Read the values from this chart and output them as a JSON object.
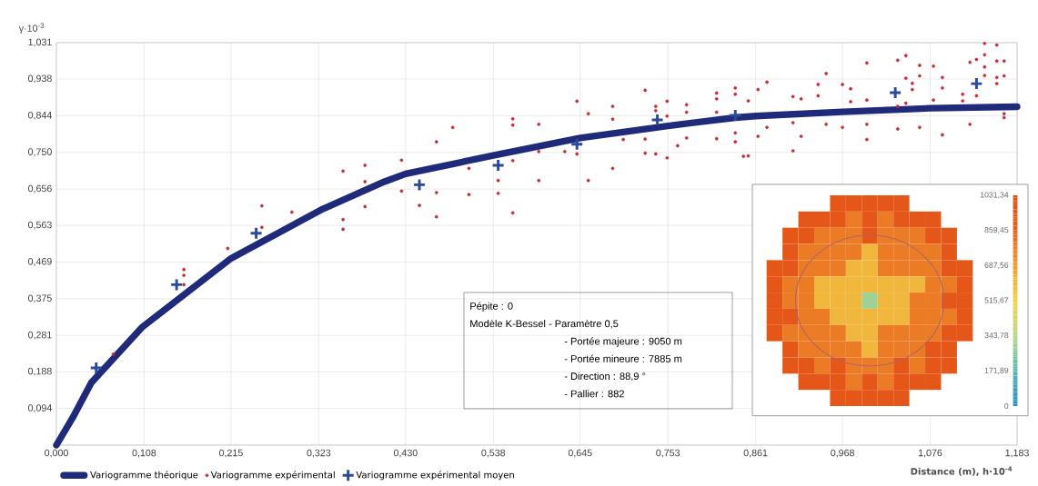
{
  "chart_data": [
    {
      "type": "line",
      "ylabel": "γ·10$^{-3}$",
      "xlabel": "Distance (m), h·10$^{-4}$",
      "annotations": [
        "Pépite : 0",
        "Modèle K-Bessel - Paramètre 0,5",
        "- Portée majeure : 9050 m",
        "- Portée mineure : 7885 m",
        "- Direction : 88,9 °",
        "- Pallier : 882"
      ],
      "xlim": [
        0,
        1.183
      ],
      "ylim": [
        0,
        1.031
      ],
      "xticks": [
        {
          "value": 0,
          "label": "0,000"
        },
        {
          "value": 0.108,
          "label": "0,108"
        },
        {
          "value": 0.215,
          "label": "0,215"
        },
        {
          "value": 0.323,
          "label": "0,323"
        },
        {
          "value": 0.43,
          "label": "0,430"
        },
        {
          "value": 0.538,
          "label": "0,538"
        },
        {
          "value": 0.645,
          "label": "0,645"
        },
        {
          "value": 0.753,
          "label": "0,753"
        },
        {
          "value": 0.861,
          "label": "0,861"
        },
        {
          "value": 0.968,
          "label": "0,968"
        },
        {
          "value": 1.076,
          "label": "1,076"
        },
        {
          "value": 1.183,
          "label": "1,183"
        }
      ],
      "yticks": [
        {
          "value": 0,
          "label": null
        },
        {
          "value": 0.094,
          "label": "0,094"
        },
        {
          "value": 0.188,
          "label": "0,188"
        },
        {
          "value": 0.281,
          "label": "0,281"
        },
        {
          "value": 0.375,
          "label": "0,375"
        },
        {
          "value": 0.469,
          "label": "0,469"
        },
        {
          "value": 0.563,
          "label": "0,563"
        },
        {
          "value": 0.656,
          "label": "0,656"
        },
        {
          "value": 0.75,
          "label": "0,750"
        },
        {
          "value": 0.844,
          "label": "0,844"
        },
        {
          "value": 0.938,
          "label": "0,938"
        },
        {
          "value": 1.031,
          "label": "1,031"
        }
      ],
      "grid": true,
      "legend": "bottom left",
      "series": [
        {
          "name": "Variogramme théorique",
          "type": "line",
          "color": "#1f2a7a",
          "marker": "none",
          "line_style": "solid",
          "x": [
            0,
            0.02,
            0.043,
            0.106,
            0.214,
            0.328,
            0.404,
            0.43,
            0.538,
            0.645,
            0.753,
            0.836,
            0.861,
            0.968,
            1.076,
            1.183
          ],
          "values": [
            0,
            0.07,
            0.16,
            0.303,
            0.477,
            0.605,
            0.675,
            0.695,
            0.742,
            0.787,
            0.818,
            0.839,
            0.843,
            0.854,
            0.863,
            0.867
          ]
        },
        {
          "name": "Variogramme expérimental",
          "type": "scatter",
          "color": "#c0303a",
          "marker": "circle",
          "x": [
            0.07,
            0.157,
            0.157,
            0.157,
            0.211,
            0.253,
            0.253,
            0.29,
            0.353,
            0.353,
            0.353,
            0.38,
            0.38,
            0.38,
            0.425,
            0.425,
            0.447,
            0.468,
            0.468,
            0.468,
            0.488,
            0.508,
            0.508,
            0.544,
            0.544,
            0.562,
            0.562,
            0.562,
            0.562,
            0.594,
            0.594,
            0.594,
            0.626,
            0.641,
            0.641,
            0.655,
            0.655,
            0.685,
            0.685,
            0.685,
            0.698,
            0.725,
            0.725,
            0.725,
            0.738,
            0.738,
            0.738,
            0.752,
            0.752,
            0.752,
            0.765,
            0.776,
            0.776,
            0.776,
            0.813,
            0.813,
            0.813,
            0.813,
            0.836,
            0.836,
            0.836,
            0.836,
            0.846,
            0.852,
            0.852,
            0.864,
            0.864,
            0.875,
            0.875,
            0.907,
            0.907,
            0.907,
            0.917,
            0.917,
            0.938,
            0.938,
            0.948,
            0.948,
            0.968,
            0.968,
            0.978,
            0.978,
            0.998,
            0.998,
            0.998,
            0.998,
            1.036,
            1.036,
            1.036,
            1.046,
            1.046,
            1.046,
            1.054,
            1.054,
            1.063,
            1.063,
            1.063,
            1.08,
            1.08,
            1.091,
            1.091,
            1.091,
            1.116,
            1.116,
            1.125,
            1.125,
            1.133,
            1.133,
            1.143,
            1.143,
            1.143,
            1.143,
            1.158,
            1.158,
            1.158,
            1.158,
            1.167,
            1.167,
            1.167,
            1.167
          ],
          "values": [
            0.233,
            0.45,
            0.435,
            0.411,
            0.504,
            0.613,
            0.558,
            0.597,
            0.702,
            0.578,
            0.553,
            0.717,
            0.675,
            0.611,
            0.73,
            0.651,
            0.614,
            0.777,
            0.647,
            0.585,
            0.814,
            0.709,
            0.642,
            0.678,
            0.645,
            0.836,
            0.82,
            0.729,
            0.595,
            0.822,
            0.752,
            0.678,
            0.752,
            0.881,
            0.746,
            0.849,
            0.678,
            0.868,
            0.835,
            0.709,
            0.783,
            0.909,
            0.784,
            0.748,
            0.868,
            0.857,
            0.746,
            0.881,
            0.843,
            0.736,
            0.767,
            0.872,
            0.853,
            0.787,
            0.902,
            0.887,
            0.853,
            0.785,
            0.915,
            0.899,
            0.8,
            0.777,
            0.74,
            0.882,
            0.741,
            0.911,
            0.791,
            0.93,
            0.814,
            0.893,
            0.826,
            0.754,
            0.887,
            0.791,
            0.924,
            0.895,
            0.952,
            0.822,
            0.924,
            0.814,
            0.913,
            0.88,
            0.979,
            0.884,
            0.822,
            0.783,
            0.986,
            0.81,
            0.868,
            0.998,
            0.94,
            0.876,
            0.927,
            0.911,
            0.973,
            0.946,
            0.814,
            0.971,
            0.884,
            0.942,
            0.915,
            0.795,
            0.899,
            0.882,
            0.822,
            0.981,
            0.988,
            0.895,
            1.029,
            1.0,
            0.969,
            0.947,
            1.025,
            0.984,
            0.942,
            0.926,
            0.984,
            0.946,
            0.849,
            0.839
          ]
        },
        {
          "name": "Variogramme expérimental moyen",
          "type": "scatter",
          "color": "#2a4a9a",
          "marker": "cross",
          "x": [
            0.049,
            0.148,
            0.246,
            0.447,
            0.544,
            0.641,
            0.74,
            0.836,
            1.033,
            1.133
          ],
          "values": [
            0.198,
            0.411,
            0.543,
            0.667,
            0.717,
            0.771,
            0.833,
            0.845,
            0.903,
            0.926
          ]
        }
      ]
    },
    {
      "type": "heatmap",
      "tick_labels": false,
      "categories": [
        null,
        null,
        null,
        null,
        null,
        null,
        null,
        null,
        null,
        null,
        null,
        null,
        null
      ],
      "y_categories": [
        null,
        null,
        null,
        null,
        null,
        null,
        null,
        null,
        null,
        null,
        null,
        null,
        null
      ],
      "clim": [
        0,
        1031.34
      ],
      "cticks": [
        {
          "value": 0,
          "label": "0"
        },
        {
          "value": 171.89,
          "label": "171,89"
        },
        {
          "value": 343.78,
          "label": "343,78"
        },
        {
          "value": 515.67,
          "label": "515,67"
        },
        {
          "value": 687.56,
          "label": "687,56"
        },
        {
          "value": 859.45,
          "label": "859,45"
        },
        {
          "value": 1031.34,
          "label": "1031,34"
        }
      ],
      "cells": [
        [
          null,
          null,
          null,
          null,
          950,
          950,
          950,
          950,
          950,
          null,
          null,
          null,
          null
        ],
        [
          null,
          null,
          950,
          950,
          950,
          780,
          950,
          780,
          950,
          950,
          950,
          null,
          null
        ],
        [
          null,
          950,
          950,
          780,
          780,
          780,
          950,
          780,
          780,
          780,
          950,
          950,
          null
        ],
        [
          null,
          950,
          780,
          780,
          780,
          780,
          600,
          780,
          780,
          780,
          780,
          950,
          null
        ],
        [
          950,
          950,
          780,
          780,
          780,
          600,
          600,
          780,
          780,
          780,
          780,
          950,
          950
        ],
        [
          950,
          780,
          780,
          600,
          600,
          600,
          600,
          600,
          600,
          600,
          780,
          780,
          950
        ],
        [
          950,
          780,
          780,
          600,
          600,
          600,
          300,
          600,
          600,
          780,
          780,
          950,
          950
        ],
        [
          950,
          950,
          780,
          780,
          600,
          600,
          600,
          600,
          600,
          780,
          780,
          780,
          950
        ],
        [
          950,
          780,
          780,
          780,
          780,
          600,
          600,
          780,
          780,
          780,
          780,
          950,
          950
        ],
        [
          null,
          950,
          780,
          780,
          780,
          780,
          600,
          780,
          780,
          780,
          950,
          950,
          null
        ],
        [
          null,
          950,
          950,
          780,
          950,
          780,
          780,
          780,
          950,
          780,
          950,
          950,
          null
        ],
        [
          null,
          null,
          950,
          950,
          950,
          780,
          950,
          780,
          950,
          950,
          950,
          null,
          null
        ],
        [
          null,
          null,
          null,
          null,
          950,
          950,
          950,
          950,
          950,
          null,
          null,
          null,
          null
        ]
      ]
    }
  ]
}
